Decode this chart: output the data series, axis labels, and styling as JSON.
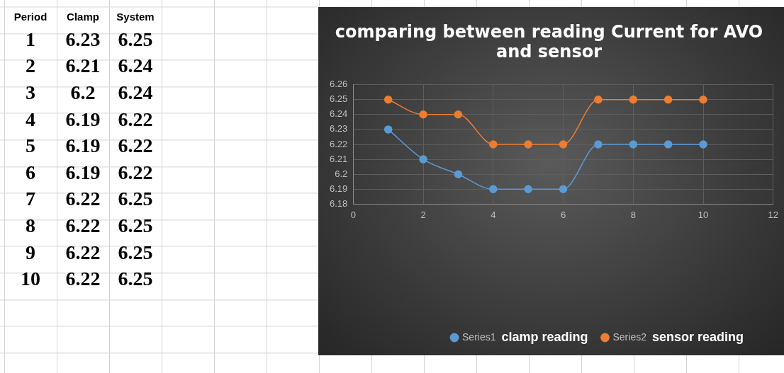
{
  "chart_data": [
    {
      "type": "heatmap",
      "ylabel": "Period",
      "categories": [
        "Clamp",
        "System"
      ],
      "y_categories": [
        "1",
        "2",
        "3",
        "4",
        "5",
        "6",
        "7",
        "8",
        "9",
        "10"
      ],
      "data_labels": true,
      "cells": [
        [
          6.23,
          6.25
        ],
        [
          6.21,
          6.24
        ],
        [
          6.2,
          6.24
        ],
        [
          6.19,
          6.22
        ],
        [
          6.19,
          6.22
        ],
        [
          6.19,
          6.22
        ],
        [
          6.22,
          6.25
        ],
        [
          6.22,
          6.25
        ],
        [
          6.22,
          6.25
        ],
        [
          6.22,
          6.25
        ]
      ]
    },
    {
      "type": "line",
      "title": "comparing between reading Current for AVO and sensor",
      "x": [
        1,
        2,
        3,
        4,
        5,
        6,
        7,
        8,
        9,
        10
      ],
      "series": [
        {
          "name": "Series1",
          "color": "#5b9bd5",
          "values": [
            6.23,
            6.21,
            6.2,
            6.19,
            6.19,
            6.19,
            6.22,
            6.22,
            6.22,
            6.22
          ]
        },
        {
          "name": "Series2",
          "color": "#ed7d31",
          "values": [
            6.25,
            6.24,
            6.24,
            6.22,
            6.22,
            6.22,
            6.25,
            6.25,
            6.25,
            6.25
          ]
        }
      ],
      "xlim": [
        0,
        12
      ],
      "xticks": [
        0,
        2,
        4,
        6,
        8,
        10,
        12
      ],
      "ylim": [
        6.18,
        6.26
      ],
      "yticks": [
        6.18,
        6.19,
        6.2,
        6.21,
        6.22,
        6.23,
        6.24,
        6.25,
        6.26
      ],
      "grid": true,
      "legend": "bottom",
      "marker": "circle",
      "line_style": "solid",
      "annotations": [
        "clamp reading",
        "sensor reading"
      ]
    }
  ]
}
